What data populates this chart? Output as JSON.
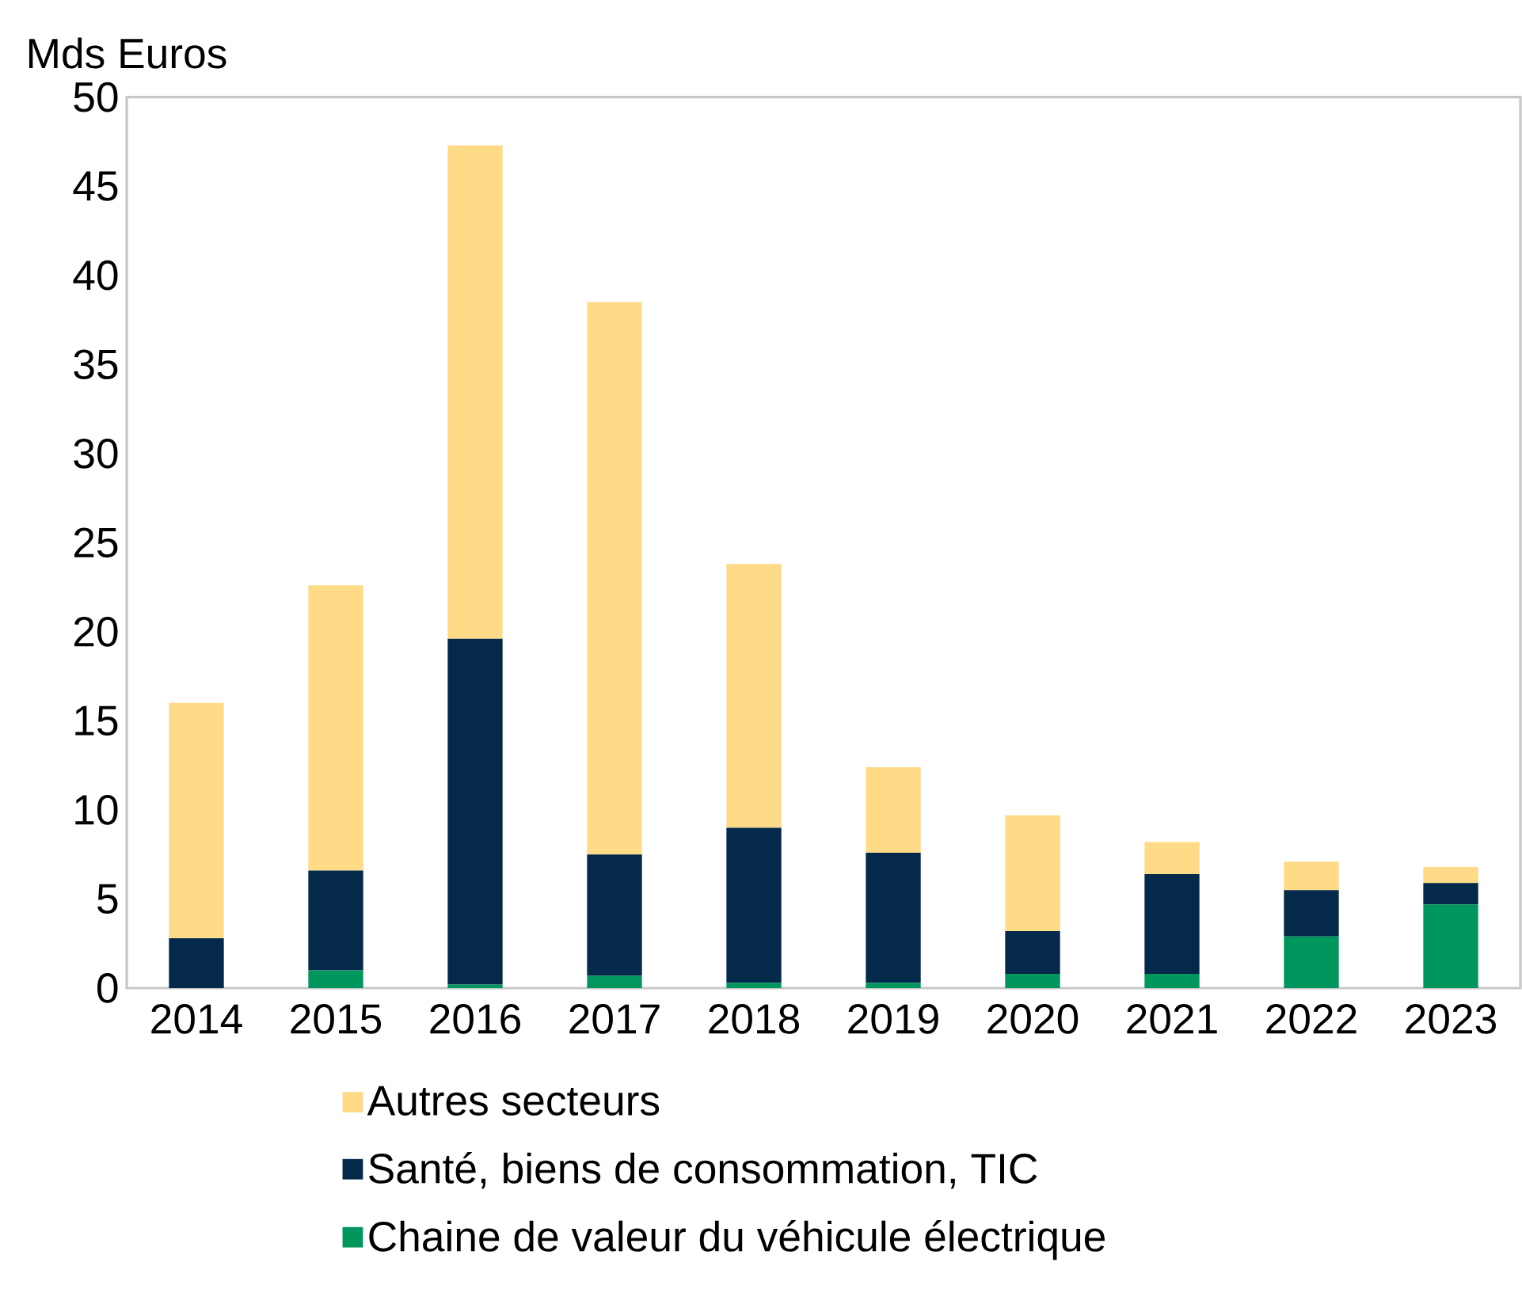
{
  "chart_data": {
    "type": "bar",
    "stacked": true,
    "ylabel": "Mds Euros",
    "categories": [
      "2014",
      "2015",
      "2016",
      "2017",
      "2018",
      "2019",
      "2020",
      "2021",
      "2022",
      "2023"
    ],
    "series": [
      {
        "name": "Chaine de valeur du véhicule électrique",
        "color": "#00965e",
        "values": [
          0,
          1.0,
          0.2,
          0.7,
          0.3,
          0.3,
          0.8,
          0.8,
          2.9,
          4.7
        ]
      },
      {
        "name": "Santé, biens de consommation, TIC",
        "color": "#05294b",
        "values": [
          2.8,
          5.6,
          19.4,
          6.8,
          8.7,
          7.3,
          2.4,
          5.6,
          2.6,
          1.2
        ]
      },
      {
        "name": "Autres secteurs",
        "color": "#ffdb88",
        "values": [
          13.2,
          16.0,
          27.7,
          31.0,
          14.8,
          4.8,
          6.5,
          1.8,
          1.6,
          0.9
        ]
      }
    ],
    "ylim": [
      0,
      50
    ],
    "yticks": [
      0,
      5,
      10,
      15,
      20,
      25,
      30,
      35,
      40,
      45,
      50
    ],
    "legend": "bottom"
  }
}
